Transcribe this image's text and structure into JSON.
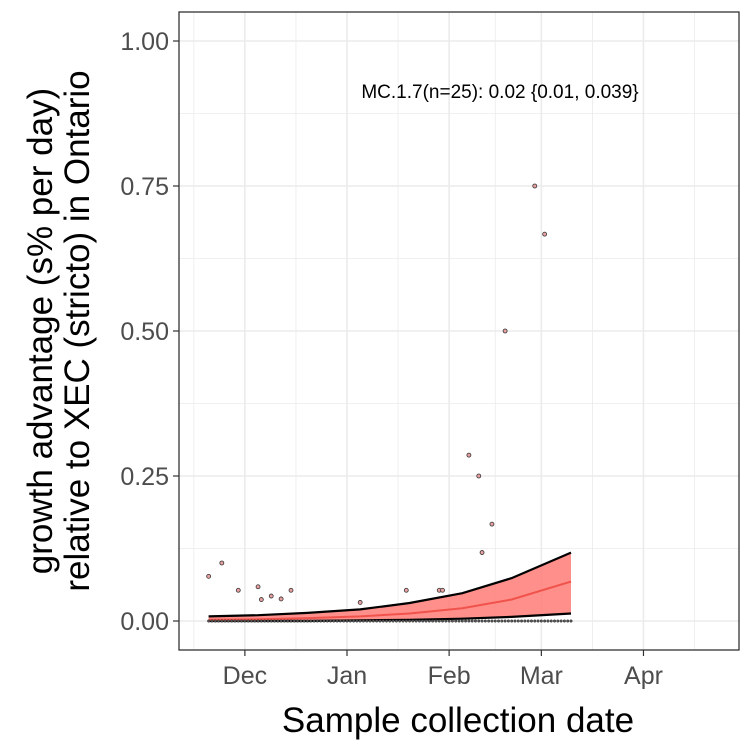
{
  "chart_data": {
    "type": "scatter",
    "title": "",
    "xlabel": "Sample collection date",
    "ylabel": [
      "growth advantage (s% per day)",
      "relative to XEC (stricto) in Ontario"
    ],
    "annotation": "MC.1.7(n=25): 0.02 {0.01, 0.039}",
    "x_domain": [
      "2024-11-11",
      "2025-04-30"
    ],
    "ylim": [
      -0.05,
      1.05
    ],
    "x_ticks": [
      {
        "date": "2024-12-01",
        "label": "Dec"
      },
      {
        "date": "2025-01-01",
        "label": "Jan"
      },
      {
        "date": "2025-02-01",
        "label": "Feb"
      },
      {
        "date": "2025-03-01",
        "label": "Mar"
      },
      {
        "date": "2025-04-01",
        "label": "Apr"
      }
    ],
    "y_ticks": [
      {
        "value": 0.0,
        "label": "0.00"
      },
      {
        "value": 0.25,
        "label": "0.25"
      },
      {
        "value": 0.5,
        "label": "0.50"
      },
      {
        "value": 0.75,
        "label": "0.75"
      },
      {
        "value": 1.0,
        "label": "1.00"
      }
    ],
    "grid": true,
    "legend": "none",
    "colors": {
      "fit": "#f0524c",
      "ribbon": "#ff7b76",
      "bounds": "#000000",
      "point_fill": "#e8a0a0",
      "grid": "#ebebeb",
      "frame": "#333333"
    },
    "points": [
      {
        "date": "2024-11-20",
        "y": 0.077
      },
      {
        "date": "2024-11-24",
        "y": 0.1
      },
      {
        "date": "2024-11-29",
        "y": 0.053
      },
      {
        "date": "2024-12-05",
        "y": 0.059
      },
      {
        "date": "2024-12-06",
        "y": 0.037
      },
      {
        "date": "2024-12-09",
        "y": 0.043
      },
      {
        "date": "2024-12-12",
        "y": 0.038
      },
      {
        "date": "2024-12-15",
        "y": 0.053
      },
      {
        "date": "2025-01-05",
        "y": 0.032
      },
      {
        "date": "2025-01-19",
        "y": 0.053
      },
      {
        "date": "2025-01-29",
        "y": 0.053
      },
      {
        "date": "2025-01-30",
        "y": 0.053
      },
      {
        "date": "2025-02-07",
        "y": 0.286
      },
      {
        "date": "2025-02-10",
        "y": 0.25
      },
      {
        "date": "2025-02-11",
        "y": 0.118
      },
      {
        "date": "2025-02-14",
        "y": 0.167
      },
      {
        "date": "2025-02-18",
        "y": 0.5
      },
      {
        "date": "2025-02-27",
        "y": 0.75
      },
      {
        "date": "2025-03-02",
        "y": 0.667
      }
    ],
    "zero_points": {
      "start": "2024-11-20",
      "end": "2025-03-10",
      "y": 0.0
    },
    "fit": {
      "dates": [
        "2024-11-20",
        "2024-12-05",
        "2024-12-20",
        "2025-01-05",
        "2025-01-20",
        "2025-02-05",
        "2025-02-20",
        "2025-03-10"
      ],
      "estimate": [
        0.002,
        0.003,
        0.005,
        0.008,
        0.013,
        0.022,
        0.037,
        0.068
      ],
      "lower": [
        0.0,
        0.0,
        0.0,
        0.001,
        0.002,
        0.004,
        0.007,
        0.013
      ],
      "upper": [
        0.008,
        0.01,
        0.014,
        0.02,
        0.031,
        0.048,
        0.074,
        0.118
      ]
    }
  }
}
